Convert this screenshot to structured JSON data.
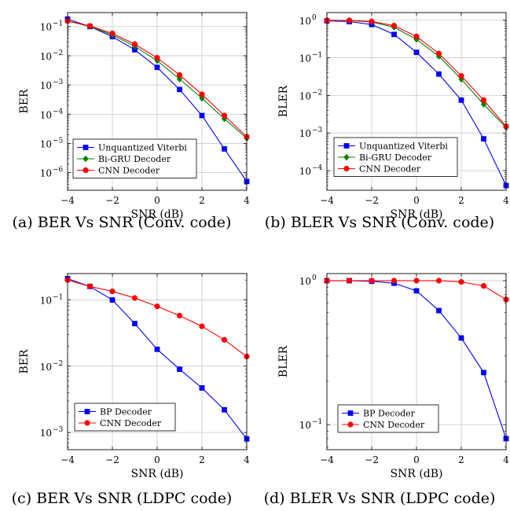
{
  "chart_data": [
    {
      "type": "line",
      "caption": "(a) BER Vs SNR (Conv. code)",
      "xlabel": "SNR (dB)",
      "ylabel": "BER",
      "yscale": "log",
      "x": [
        -4,
        -3,
        -2,
        -1,
        0,
        1,
        2,
        3,
        4
      ],
      "xlim": [
        -4,
        4
      ],
      "ylim": [
        2.5e-07,
        0.3
      ],
      "xticks": [
        "−4",
        "−2",
        "0",
        "2",
        "4"
      ],
      "yticks": [
        "10",
        "10",
        "10",
        "10",
        "10",
        "10"
      ],
      "ytick_exps": [
        "−1",
        "−2",
        "−3",
        "−4",
        "−5",
        "−6"
      ],
      "ytick_values": [
        0.1,
        0.01,
        0.001,
        0.0001,
        1e-05,
        1e-06
      ],
      "grid": true,
      "legend": "bottom-left",
      "series": [
        {
          "name": "Unquantized Viterbi",
          "color": "#0000ff",
          "marker": "square",
          "values": [
            0.18,
            0.1,
            0.045,
            0.016,
            0.004,
            0.0007,
            9e-05,
            6.5e-06,
            5e-07
          ]
        },
        {
          "name": "Bi-GRU Decoder",
          "color": "#008000",
          "marker": "diamond",
          "values": [
            0.155,
            0.1,
            0.052,
            0.021,
            0.0068,
            0.0016,
            0.00035,
            7e-05,
            1.5e-05
          ]
        },
        {
          "name": "CNN Decoder",
          "color": "#ff0000",
          "marker": "circle",
          "values": [
            0.155,
            0.105,
            0.058,
            0.025,
            0.0085,
            0.0022,
            0.00048,
            9e-05,
            1.7e-05
          ]
        }
      ]
    },
    {
      "type": "line",
      "caption": "(b) BLER Vs SNR (Conv. code)",
      "xlabel": "SNR (dB)",
      "ylabel": "BLER",
      "yscale": "log",
      "x": [
        -4,
        -3,
        -2,
        -1,
        0,
        1,
        2,
        3,
        4
      ],
      "xlim": [
        -4,
        4
      ],
      "ylim": [
        3e-05,
        1.6
      ],
      "xticks": [
        "−4",
        "−2",
        "0",
        "2",
        "4"
      ],
      "yticks": [
        "10",
        "10",
        "10",
        "10",
        "10"
      ],
      "ytick_exps": [
        "0",
        "−1",
        "−2",
        "−3",
        "−4"
      ],
      "ytick_values": [
        1,
        0.1,
        0.01,
        0.001,
        0.0001
      ],
      "grid": true,
      "legend": "bottom-left",
      "series": [
        {
          "name": "Unquantized Viterbi",
          "color": "#0000ff",
          "marker": "square",
          "values": [
            0.97,
            0.92,
            0.77,
            0.42,
            0.14,
            0.037,
            0.0075,
            0.0007,
            4e-05
          ]
        },
        {
          "name": "Bi-GRU Decoder",
          "color": "#008000",
          "marker": "diamond",
          "values": [
            0.99,
            0.98,
            0.9,
            0.65,
            0.31,
            0.11,
            0.027,
            0.0058,
            0.0014
          ]
        },
        {
          "name": "CNN Decoder",
          "color": "#ff0000",
          "marker": "circle",
          "values": [
            0.99,
            0.99,
            0.93,
            0.72,
            0.37,
            0.13,
            0.033,
            0.0075,
            0.0015
          ]
        }
      ]
    },
    {
      "type": "line",
      "caption": "(c) BER Vs SNR (LDPC code)",
      "xlabel": "SNR (dB)",
      "ylabel": "BER",
      "yscale": "log",
      "x": [
        -4,
        -3,
        -2,
        -1,
        0,
        1,
        2,
        3,
        4
      ],
      "xlim": [
        -4,
        4
      ],
      "ylim": [
        0.00055,
        0.25
      ],
      "xticks": [
        "−4",
        "−2",
        "0",
        "2",
        "4"
      ],
      "yticks": [
        "10",
        "10",
        "10"
      ],
      "ytick_exps": [
        "−1",
        "−2",
        "−3"
      ],
      "ytick_values": [
        0.1,
        0.01,
        0.001
      ],
      "grid": true,
      "legend": "bottom-left",
      "series": [
        {
          "name": "BP Decoder",
          "color": "#0000ff",
          "marker": "square",
          "values": [
            0.21,
            0.16,
            0.1,
            0.044,
            0.018,
            0.009,
            0.0047,
            0.0022,
            0.0008
          ]
        },
        {
          "name": "CNN Decoder",
          "color": "#ff0000",
          "marker": "circle",
          "values": [
            0.2,
            0.16,
            0.135,
            0.107,
            0.08,
            0.058,
            0.04,
            0.025,
            0.014
          ]
        }
      ]
    },
    {
      "type": "line",
      "caption": "(d) BLER Vs SNR (LDPC code)",
      "xlabel": "SNR (dB)",
      "ylabel": "BLER",
      "yscale": "log",
      "x": [
        -4,
        -3,
        -2,
        -1,
        0,
        1,
        2,
        3,
        4
      ],
      "xlim": [
        -4,
        4
      ],
      "ylim": [
        0.067,
        1.12
      ],
      "xticks": [
        "−4",
        "−2",
        "0",
        "2",
        "4"
      ],
      "yticks": [
        "10",
        "10"
      ],
      "ytick_exps": [
        "0",
        "−1"
      ],
      "ytick_values": [
        1,
        0.1
      ],
      "grid": true,
      "legend": "bottom-left",
      "series": [
        {
          "name": "BP Decoder",
          "color": "#0000ff",
          "marker": "square",
          "values": [
            1.0,
            1.0,
            0.99,
            0.96,
            0.85,
            0.62,
            0.4,
            0.23,
            0.08
          ]
        },
        {
          "name": "CNN Decoder",
          "color": "#ff0000",
          "marker": "circle",
          "values": [
            1.0,
            1.0,
            1.0,
            1.0,
            1.0,
            1.0,
            0.98,
            0.92,
            0.74
          ]
        }
      ]
    }
  ]
}
